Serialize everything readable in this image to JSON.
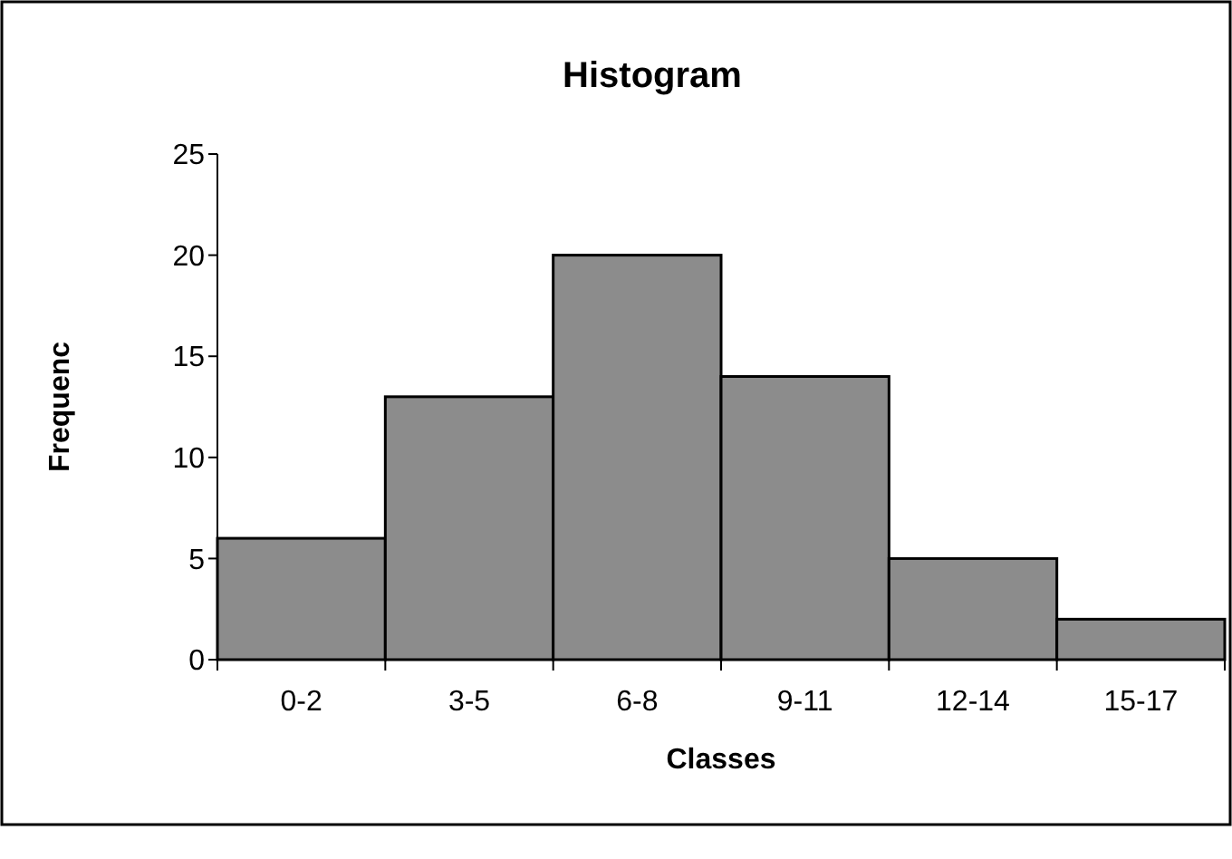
{
  "chart_data": {
    "type": "bar",
    "title": "Histogram",
    "xlabel": "Classes",
    "ylabel": "Frequenc",
    "categories": [
      "0-2",
      "3-5",
      "6-8",
      "9-11",
      "12-14",
      "15-17"
    ],
    "values": [
      6,
      13,
      20,
      14,
      5,
      2
    ],
    "color": "#8c8c8c",
    "ylim": [
      0,
      25
    ],
    "yticks": [
      0,
      5,
      10,
      15,
      20,
      25
    ],
    "grid": false
  }
}
